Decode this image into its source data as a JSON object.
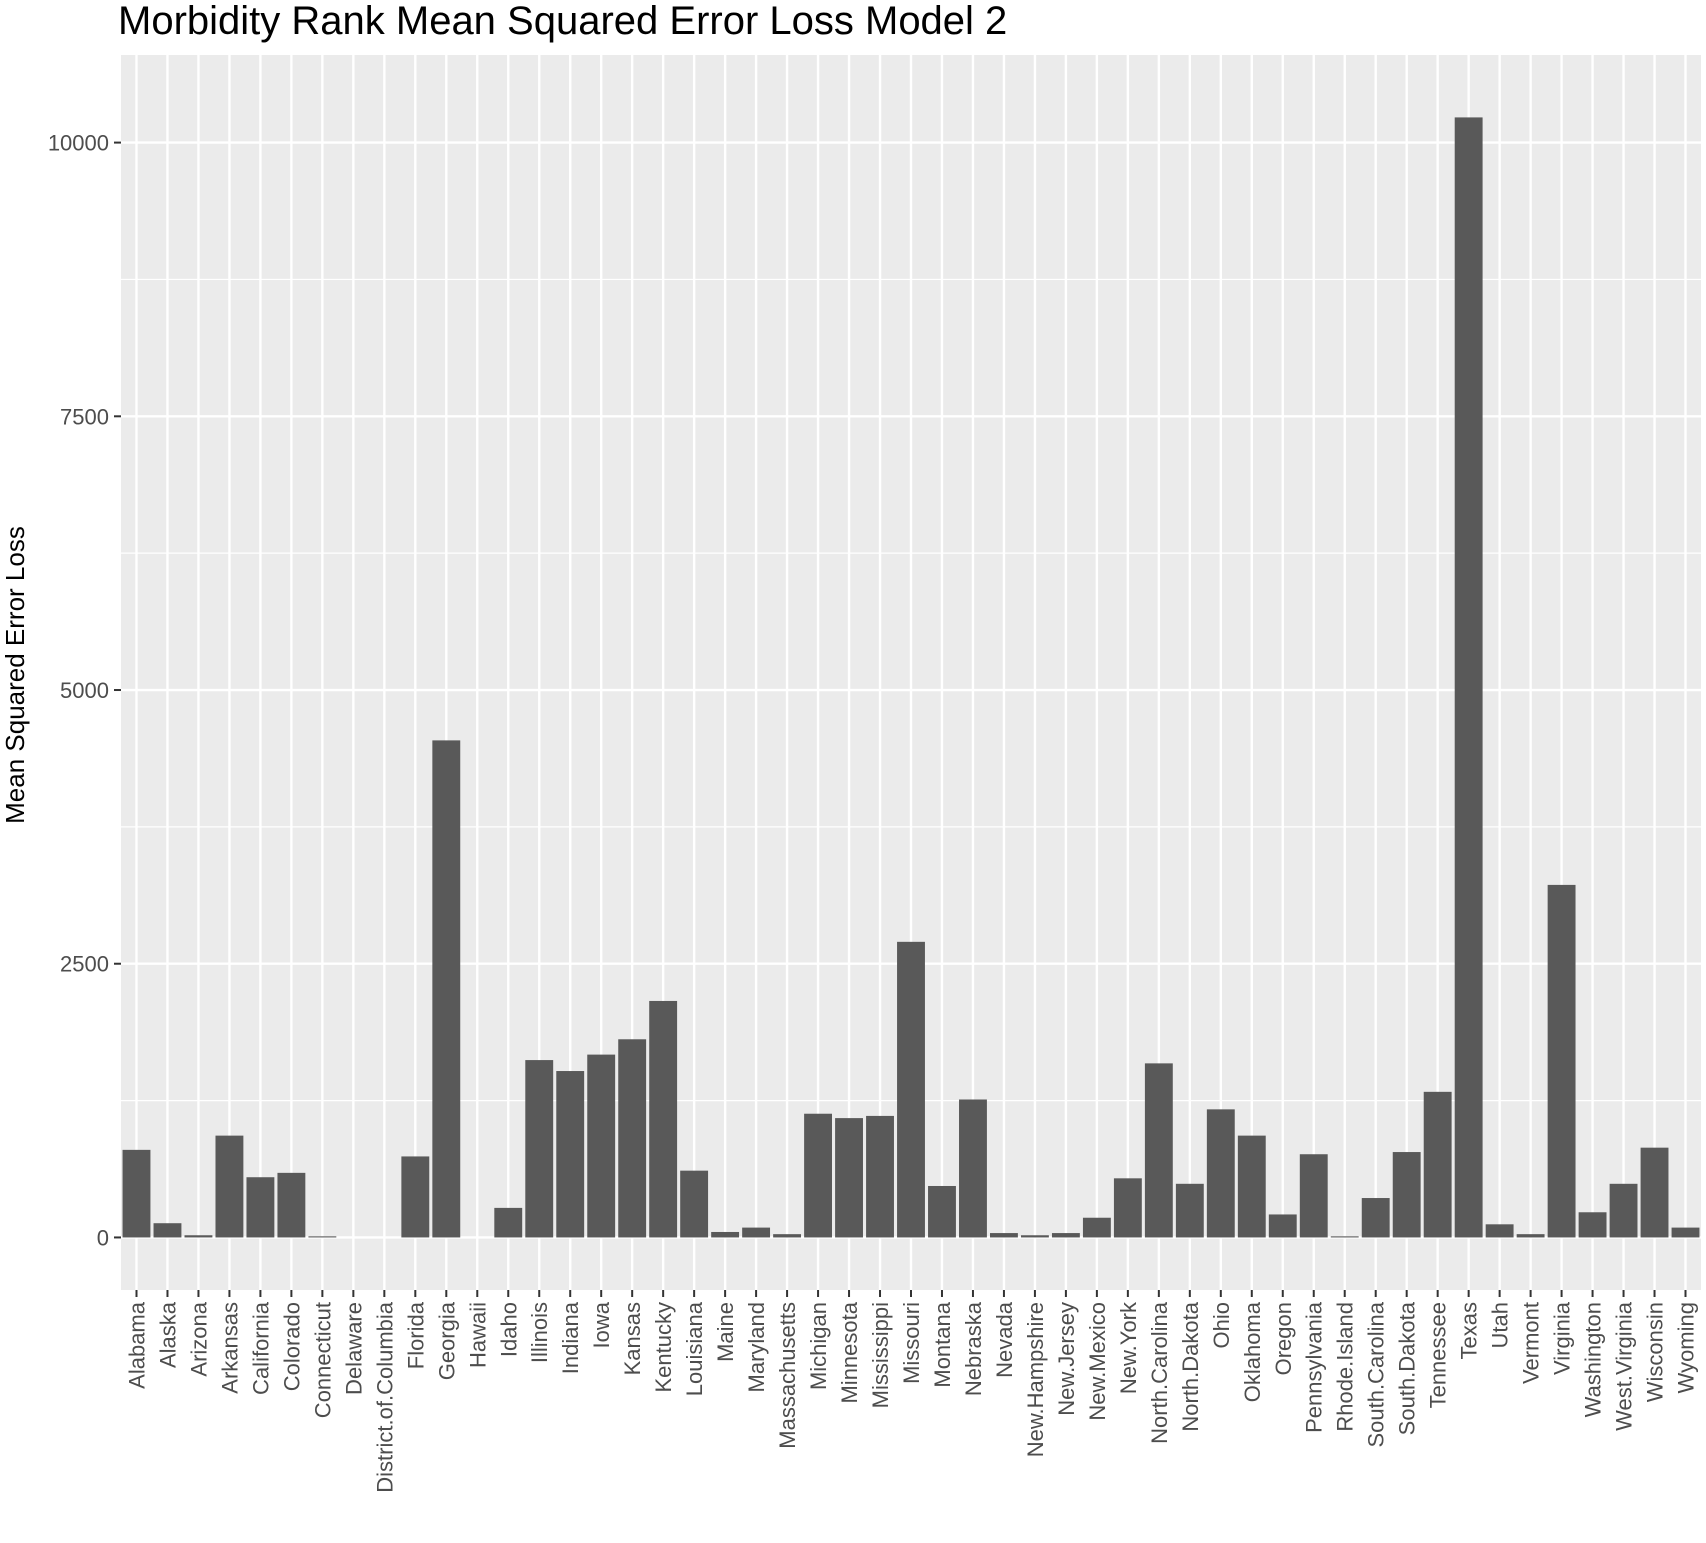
{
  "chart_data": {
    "type": "bar",
    "title": "Morbidity Rank Mean Squared Error Loss Model 2",
    "xlabel": "",
    "ylabel": "Mean Squared Error Loss",
    "ylim": [
      -480,
      10800
    ],
    "yticks": [
      0,
      2500,
      5000,
      7500,
      10000
    ],
    "grid": true,
    "legend": "none",
    "colors": {
      "panel": "#EBEBEB",
      "bar": "#595959",
      "grid": "#FFFFFF",
      "text": "#000000",
      "tick_text": "#4D4D4D"
    },
    "categories": [
      "Alabama",
      "Alaska",
      "Arizona",
      "Arkansas",
      "California",
      "Colorado",
      "Connecticut",
      "Delaware",
      "District.of.Columbia",
      "Florida",
      "Georgia",
      "Hawaii",
      "Idaho",
      "Illinois",
      "Indiana",
      "Iowa",
      "Kansas",
      "Kentucky",
      "Louisiana",
      "Maine",
      "Maryland",
      "Massachusetts",
      "Michigan",
      "Minnesota",
      "Mississippi",
      "Missouri",
      "Montana",
      "Nebraska",
      "Nevada",
      "New.Hampshire",
      "New.Jersey",
      "New.Mexico",
      "New.York",
      "North.Carolina",
      "North.Dakota",
      "Ohio",
      "Oklahoma",
      "Oregon",
      "Pennsylvania",
      "Rhode.Island",
      "South.Carolina",
      "South.Dakota",
      "Tennessee",
      "Texas",
      "Utah",
      "Vermont",
      "Virginia",
      "Washington",
      "West.Virginia",
      "Wisconsin",
      "Wyoming"
    ],
    "values": [
      800,
      130,
      20,
      930,
      550,
      590,
      10,
      0,
      0,
      740,
      4540,
      0,
      270,
      1620,
      1520,
      1670,
      1810,
      2160,
      610,
      50,
      90,
      30,
      1130,
      1090,
      1110,
      2700,
      470,
      1260,
      40,
      20,
      40,
      180,
      540,
      1590,
      490,
      1170,
      930,
      210,
      760,
      10,
      360,
      780,
      1330,
      10230,
      120,
      30,
      3220,
      230,
      490,
      820,
      90
    ]
  }
}
